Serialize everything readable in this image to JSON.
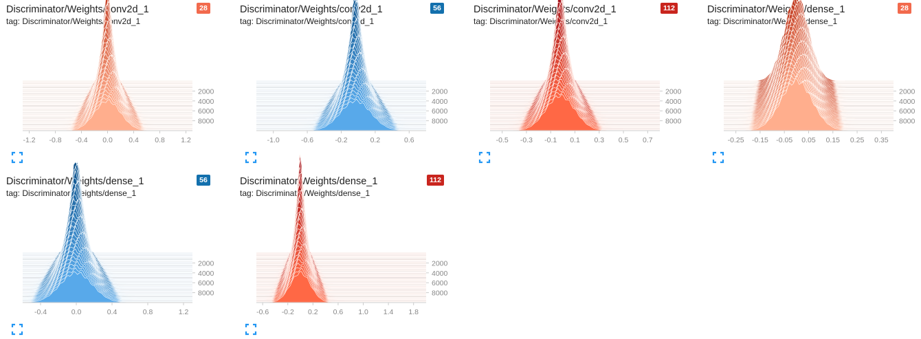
{
  "colors": {
    "28": {
      "bg": "#f26a4d",
      "dark": "#c0391f",
      "light": "#ffae8e",
      "line": "#fff2ec"
    },
    "56": {
      "bg": "#1370ad",
      "dark": "#0b4f87",
      "light": "#58a9ea",
      "line": "#ebf4fb"
    },
    "112": {
      "bg": "#c9251e",
      "dark": "#9c0d18",
      "light": "#ff6846",
      "line": "#ffe9e3"
    }
  },
  "icons": {
    "expand": "fullscreen-expand-icon"
  },
  "cards": [
    {
      "title": "Discriminator/Weights/conv2d_1",
      "tag": "tag: Discriminator/Weights/conv2d_1",
      "badge": "28"
    },
    {
      "title": "Discriminator/Weights/conv2d_1",
      "tag": "tag: Discriminator/Weights/conv2d_1",
      "badge": "56"
    },
    {
      "title": "Discriminator/Weights/conv2d_1",
      "tag": "tag: Discriminator/Weights/conv2d_1",
      "badge": "112"
    },
    {
      "title": "Discriminator/Weights/dense_1",
      "tag": "tag: Discriminator/Weights/dense_1",
      "badge": "28"
    },
    {
      "title": "Discriminator/Weights/dense_1",
      "tag": "tag: Discriminator/Weights/dense_1",
      "badge": "56"
    },
    {
      "title": "Discriminator/Weights/dense_1",
      "tag": "tag: Discriminator/Weights/dense_1",
      "badge": "112"
    }
  ],
  "chart_data": [
    {
      "type": "area",
      "chart_style": "histogram-offset-ridgeline",
      "x_ticks": [
        "-1.2",
        "-0.8",
        "-0.4",
        "0.0",
        "0.4",
        "0.8",
        "1.2"
      ],
      "xlim": [
        -1.3,
        1.3
      ],
      "y_ticks": [
        "2000",
        "4000",
        "6000",
        "8000"
      ],
      "ylim": [
        0,
        10000
      ],
      "distribution": {
        "center": 0.0,
        "spread_first_step": 0.06,
        "spread_last_step": 0.2,
        "peak_first_step": 0.95,
        "peak_last_step": 0.3
      }
    },
    {
      "type": "area",
      "chart_style": "histogram-offset-ridgeline",
      "x_ticks": [
        "-1.0",
        "-0.6",
        "-0.2",
        "0.2",
        "0.6"
      ],
      "xlim": [
        -1.2,
        0.8
      ],
      "y_ticks": [
        "2000",
        "4000",
        "6000",
        "8000"
      ],
      "ylim": [
        0,
        10000
      ],
      "distribution": {
        "center": -0.03,
        "spread_first_step": 0.05,
        "spread_last_step": 0.18,
        "peak_first_step": 0.95,
        "peak_last_step": 0.3
      }
    },
    {
      "type": "area",
      "chart_style": "histogram-offset-ridgeline",
      "x_ticks": [
        "-0.5",
        "-0.3",
        "-0.1",
        "0.1",
        "0.3",
        "0.5",
        "0.7"
      ],
      "xlim": [
        -0.6,
        0.8
      ],
      "y_ticks": [
        "2000",
        "4000",
        "6000",
        "8000"
      ],
      "ylim": [
        0,
        10000
      ],
      "distribution": {
        "center": -0.02,
        "spread_first_step": 0.04,
        "spread_last_step": 0.12,
        "peak_first_step": 0.95,
        "peak_last_step": 0.35
      }
    },
    {
      "type": "area",
      "chart_style": "histogram-offset-ridgeline",
      "x_ticks": [
        "-0.25",
        "-0.15",
        "-0.05",
        "0.05",
        "0.15",
        "0.25",
        "0.35"
      ],
      "xlim": [
        -0.3,
        0.4
      ],
      "y_ticks": [
        "2000",
        "4000",
        "6000",
        "8000"
      ],
      "ylim": [
        0,
        10000
      ],
      "distribution": {
        "center": 0.0,
        "spread_first_step": 0.05,
        "spread_last_step": 0.065,
        "peak_first_step": 0.85,
        "peak_last_step": 0.5
      }
    },
    {
      "type": "area",
      "chart_style": "histogram-offset-ridgeline",
      "x_ticks": [
        "-0.4",
        "0.0",
        "0.4",
        "0.8",
        "1.2"
      ],
      "xlim": [
        -0.6,
        1.3
      ],
      "y_ticks": [
        "2000",
        "4000",
        "6000",
        "8000"
      ],
      "ylim": [
        0,
        10000
      ],
      "distribution": {
        "center": 0.0,
        "spread_first_step": 0.06,
        "spread_last_step": 0.18,
        "peak_first_step": 0.95,
        "peak_last_step": 0.3
      }
    },
    {
      "type": "area",
      "chart_style": "histogram-offset-ridgeline",
      "x_ticks": [
        "-0.6",
        "-0.2",
        "0.2",
        "0.6",
        "1.0",
        "1.4",
        "1.8"
      ],
      "xlim": [
        -0.7,
        2.0
      ],
      "y_ticks": [
        "2000",
        "4000",
        "6000",
        "8000"
      ],
      "ylim": [
        0,
        10000
      ],
      "distribution": {
        "center": 0.0,
        "spread_first_step": 0.05,
        "spread_last_step": 0.16,
        "peak_first_step": 0.95,
        "peak_last_step": 0.3
      }
    }
  ]
}
